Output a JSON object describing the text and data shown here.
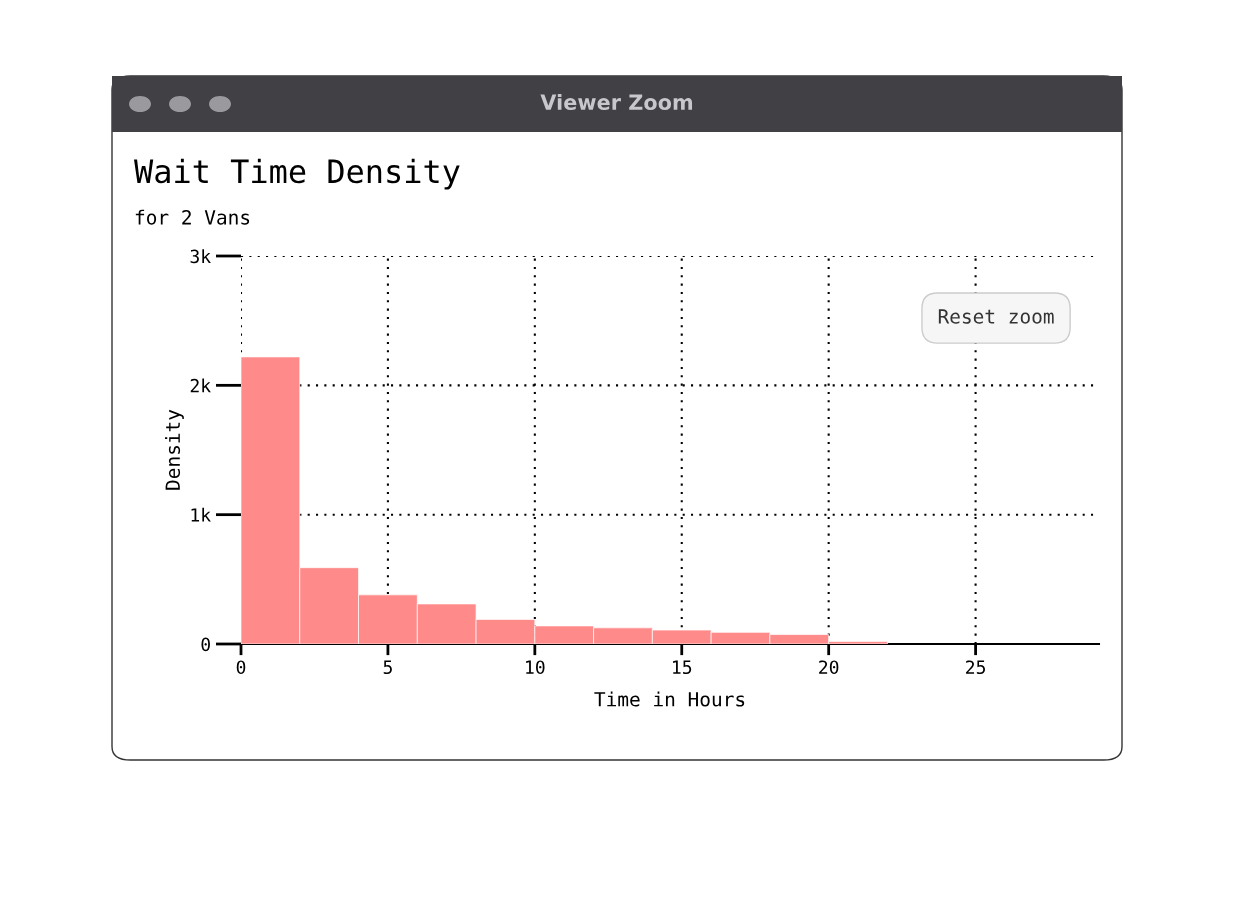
{
  "chart_data": {
    "type": "histogram",
    "title": "Wait Time Density",
    "subtitle": "for 2 Vans",
    "xlabel": "Time in Hours",
    "ylabel": "Density",
    "bins": [
      0,
      2,
      4,
      6,
      8,
      10,
      12,
      14,
      16,
      18,
      20,
      22
    ],
    "values": [
      2220,
      590,
      380,
      310,
      190,
      140,
      125,
      108,
      90,
      73,
      20
    ],
    "color": "#ff8a8a",
    "xlim": [
      0,
      29.2
    ],
    "ylim": [
      0,
      3000
    ],
    "xticks": [
      0,
      5,
      10,
      15,
      20,
      25
    ],
    "yticks": [
      {
        "value": 0,
        "label": "0"
      },
      {
        "value": 1000,
        "label": "1k"
      },
      {
        "value": 2000,
        "label": "2k"
      },
      {
        "value": 3000,
        "label": "3k"
      }
    ],
    "grid": true,
    "annotations": [
      "Viewer Zoom",
      "Reset zoom"
    ]
  }
}
